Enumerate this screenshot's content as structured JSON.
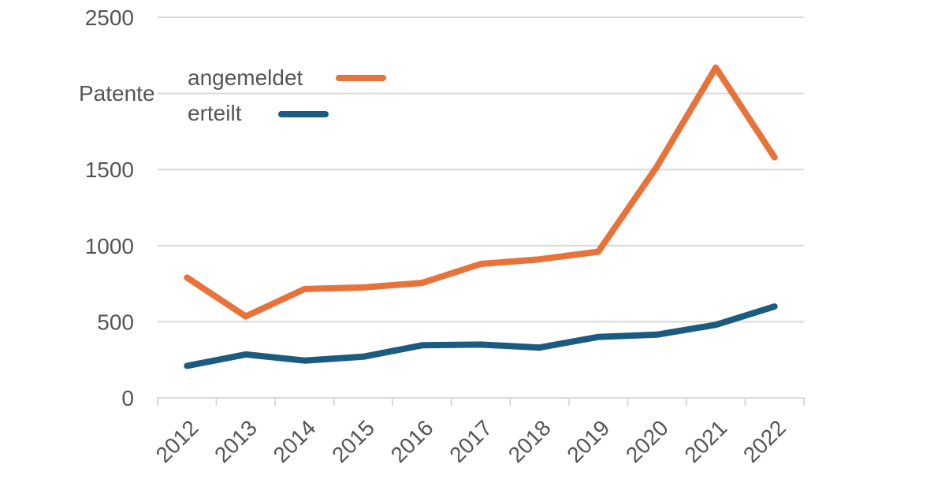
{
  "chart_data": {
    "type": "line",
    "ylabel": "Patente",
    "categories": [
      "2012",
      "2013",
      "2014",
      "2015",
      "2016",
      "2017",
      "2018",
      "2019",
      "2020",
      "2021",
      "2022"
    ],
    "y_ticks": [
      "0",
      "500",
      "1000",
      "1500",
      "2500"
    ],
    "ylim": [
      0,
      2500
    ],
    "grid": true,
    "legend_position": "top-left",
    "series": [
      {
        "name": "angemeldet",
        "color": "#e8733a",
        "values": [
          790,
          535,
          715,
          725,
          755,
          880,
          910,
          960,
          1520,
          2170,
          1580
        ]
      },
      {
        "name": "erteilt",
        "color": "#1c5b80",
        "values": [
          210,
          285,
          245,
          270,
          345,
          350,
          330,
          400,
          415,
          480,
          600
        ]
      }
    ]
  }
}
